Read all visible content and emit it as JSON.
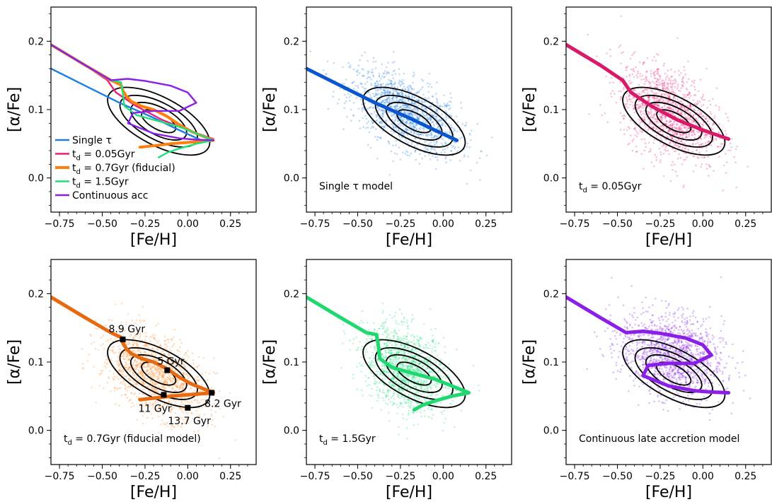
{
  "chart_data": [
    {
      "type": "line",
      "xlabel": "[Fe/H]",
      "ylabel": "[α/Fe]",
      "xlim": [
        -0.8,
        0.4
      ],
      "ylim": [
        -0.05,
        0.25
      ],
      "xticks": [
        "−0.75",
        "−0.50",
        "−0.25",
        "0.00",
        "0.25"
      ],
      "yticks": [
        "0.0",
        "0.1",
        "0.2"
      ],
      "grid": false,
      "legend_placement": "lower-left",
      "legend": [
        {
          "label": "Single τ",
          "color": "#1f7fe0"
        },
        {
          "label_main": "t",
          "label_sub": "d",
          "label_rest": " = 0.05Gyr",
          "color": "#e8207a"
        },
        {
          "label_main": "t",
          "label_sub": "d",
          "label_rest": " = 0.7Gyr (fiducial)",
          "color": "#ff7f0e"
        },
        {
          "label_main": "t",
          "label_sub": "d",
          "label_rest": " = 1.5Gyr",
          "color": "#22e07a"
        },
        {
          "label": "Continuous acc",
          "color": "#8a1fe8"
        }
      ],
      "series": [
        {
          "key": "single_tau",
          "color": "#1f7fe0",
          "x": [
            -0.8,
            -0.6,
            -0.4,
            -0.2,
            -0.05,
            0.08
          ],
          "y": [
            0.16,
            0.135,
            0.11,
            0.088,
            0.07,
            0.055
          ]
        },
        {
          "key": "td_0.05",
          "color": "#e8207a",
          "x": [
            -0.8,
            -0.6,
            -0.47,
            -0.42,
            -0.3,
            -0.15,
            0.0,
            0.15
          ],
          "y": [
            0.195,
            0.165,
            0.143,
            0.125,
            0.105,
            0.085,
            0.07,
            0.057
          ]
        },
        {
          "key": "td_0.7",
          "color": "#ff7f0e",
          "x": [
            -0.8,
            -0.6,
            -0.45,
            -0.39,
            -0.38,
            -0.36,
            -0.33,
            -0.27,
            -0.2,
            -0.12,
            -0.05,
            0.02,
            0.1,
            0.15,
            0.1,
            0.0,
            -0.1,
            -0.2,
            -0.28
          ],
          "y": [
            0.195,
            0.165,
            0.143,
            0.136,
            0.128,
            0.12,
            0.112,
            0.105,
            0.1,
            0.09,
            0.078,
            0.068,
            0.06,
            0.055,
            0.054,
            0.052,
            0.05,
            0.047,
            0.045
          ]
        },
        {
          "key": "td_1.5",
          "color": "#22e07a",
          "x": [
            -0.8,
            -0.6,
            -0.45,
            -0.39,
            -0.38,
            -0.37,
            -0.3,
            -0.2,
            -0.05,
            0.05,
            0.15,
            0.05,
            -0.05,
            -0.12,
            -0.17
          ],
          "y": [
            0.195,
            0.165,
            0.143,
            0.14,
            0.125,
            0.105,
            0.092,
            0.085,
            0.075,
            0.065,
            0.055,
            0.05,
            0.043,
            0.037,
            0.03
          ]
        },
        {
          "key": "continuous",
          "color": "#8a1fe8",
          "x": [
            -0.8,
            -0.6,
            -0.45,
            -0.4,
            -0.35,
            -0.25,
            -0.1,
            0.0,
            0.05,
            -0.05,
            -0.2,
            -0.32,
            -0.35,
            -0.2,
            -0.05,
            0.05,
            0.15
          ],
          "y": [
            0.195,
            0.165,
            0.143,
            0.144,
            0.145,
            0.142,
            0.135,
            0.125,
            0.11,
            0.098,
            0.098,
            0.095,
            0.08,
            0.065,
            0.058,
            0.056,
            0.055
          ]
        }
      ],
      "contours": true
    },
    {
      "type": "scatter",
      "xlabel": "[Fe/H]",
      "ylabel": "[α/Fe]",
      "xlim": [
        -0.8,
        0.4
      ],
      "ylim": [
        -0.05,
        0.25
      ],
      "xticks": [
        "−0.75",
        "−0.50",
        "−0.25",
        "0.00",
        "0.25"
      ],
      "yticks": [
        "0.0",
        "0.1",
        "0.2"
      ],
      "grid": false,
      "annotation": {
        "text": "Single τ model"
      },
      "scatter_color": "#1f7fe0",
      "track": {
        "color": "#0a56d0",
        "x": [
          -0.8,
          -0.6,
          -0.4,
          -0.2,
          -0.05,
          0.08
        ],
        "y": [
          0.16,
          0.135,
          0.11,
          0.088,
          0.07,
          0.055
        ]
      },
      "cloud": {
        "center_x": -0.22,
        "center_y": 0.095,
        "spread_x": 0.16,
        "spread_y": 0.025,
        "tilt": -0.11
      },
      "contours": true
    },
    {
      "type": "scatter",
      "xlabel": "[Fe/H]",
      "ylabel": "[α/Fe]",
      "xlim": [
        -0.8,
        0.4
      ],
      "ylim": [
        -0.05,
        0.25
      ],
      "xticks": [
        "−0.75",
        "−0.50",
        "−0.25",
        "0.00",
        "0.25"
      ],
      "yticks": [
        "0.0",
        "0.1",
        "0.2"
      ],
      "grid": false,
      "annotation": {
        "main": "t",
        "sub": "d",
        "rest": " = 0.05Gyr"
      },
      "scatter_color": "#e8207a",
      "track": {
        "color": "#d81b68",
        "x": [
          -0.8,
          -0.6,
          -0.47,
          -0.42,
          -0.3,
          -0.15,
          0.0,
          0.15
        ],
        "y": [
          0.195,
          0.165,
          0.143,
          0.125,
          0.105,
          0.085,
          0.07,
          0.057
        ]
      },
      "cloud": {
        "center_x": -0.2,
        "center_y": 0.095,
        "spread_x": 0.14,
        "spread_y": 0.032,
        "tilt": -0.1
      },
      "contours": true
    },
    {
      "type": "scatter",
      "xlabel": "[Fe/H]",
      "ylabel": "[α/Fe]",
      "xlim": [
        -0.8,
        0.4
      ],
      "ylim": [
        -0.05,
        0.25
      ],
      "xticks": [
        "−0.75",
        "−0.50",
        "−0.25",
        "0.00",
        "0.25"
      ],
      "yticks": [
        "0.0",
        "0.1",
        "0.2"
      ],
      "grid": false,
      "annotation": {
        "main": "t",
        "sub": "d",
        "rest": " = 0.7Gyr (fiducial model)"
      },
      "scatter_color": "#ff8c2a",
      "track": {
        "color": "#e86a10",
        "x": [
          -0.8,
          -0.6,
          -0.45,
          -0.39,
          -0.38,
          -0.36,
          -0.33,
          -0.27,
          -0.2,
          -0.12,
          -0.05,
          0.02,
          0.1,
          0.15,
          0.1,
          0.0,
          -0.1,
          -0.2,
          -0.28
        ],
        "y": [
          0.195,
          0.165,
          0.143,
          0.136,
          0.128,
          0.12,
          0.112,
          0.105,
          0.1,
          0.09,
          0.078,
          0.068,
          0.06,
          0.055,
          0.054,
          0.052,
          0.05,
          0.047,
          0.045
        ]
      },
      "cloud": {
        "center_x": -0.2,
        "center_y": 0.082,
        "spread_x": 0.15,
        "spread_y": 0.028,
        "tilt": -0.1
      },
      "age_markers": [
        {
          "label": "8.9 Gyr",
          "x": -0.38,
          "y": 0.133
        },
        {
          "label": "5 Gyr",
          "x": -0.12,
          "y": 0.088
        },
        {
          "label": "8.2 Gyr",
          "x": 0.14,
          "y": 0.055
        },
        {
          "label": "11 Gyr",
          "x": -0.14,
          "y": 0.052
        },
        {
          "label": "13.7 Gyr",
          "x": 0.0,
          "y": 0.033
        }
      ],
      "contours": true
    },
    {
      "type": "scatter",
      "xlabel": "[Fe/H]",
      "ylabel": "[α/Fe]",
      "xlim": [
        -0.8,
        0.4
      ],
      "ylim": [
        -0.05,
        0.25
      ],
      "xticks": [
        "−0.75",
        "−0.50",
        "−0.25",
        "0.00",
        "0.25"
      ],
      "yticks": [
        "0.0",
        "0.1",
        "0.2"
      ],
      "grid": false,
      "annotation": {
        "main": "t",
        "sub": "d",
        "rest": " = 1.5Gyr"
      },
      "scatter_color": "#22e07a",
      "track": {
        "color": "#1fd870",
        "x": [
          -0.8,
          -0.6,
          -0.45,
          -0.39,
          -0.38,
          -0.37,
          -0.3,
          -0.2,
          -0.05,
          0.05,
          0.15,
          0.05,
          -0.05,
          -0.12,
          -0.17
        ],
        "y": [
          0.195,
          0.165,
          0.143,
          0.14,
          0.125,
          0.105,
          0.092,
          0.085,
          0.075,
          0.065,
          0.055,
          0.05,
          0.043,
          0.037,
          0.03
        ]
      },
      "cloud": {
        "center_x": -0.22,
        "center_y": 0.09,
        "spread_x": 0.12,
        "spread_y": 0.03,
        "tilt": -0.08
      },
      "contours": true
    },
    {
      "type": "scatter",
      "xlabel": "[Fe/H]",
      "ylabel": "[α/Fe]",
      "xlim": [
        -0.8,
        0.4
      ],
      "ylim": [
        -0.05,
        0.25
      ],
      "xticks": [
        "−0.75",
        "−0.50",
        "−0.25",
        "0.00",
        "0.25"
      ],
      "yticks": [
        "0.0",
        "0.1",
        "0.2"
      ],
      "grid": false,
      "annotation": {
        "text": "Continuous late accretion model"
      },
      "scatter_color": "#8a1fe8",
      "track": {
        "color": "#8a1fe8",
        "x": [
          -0.8,
          -0.6,
          -0.45,
          -0.4,
          -0.35,
          -0.25,
          -0.1,
          0.0,
          0.05,
          -0.05,
          -0.2,
          -0.32,
          -0.35,
          -0.2,
          -0.05,
          0.05,
          0.15
        ],
        "y": [
          0.195,
          0.165,
          0.143,
          0.144,
          0.145,
          0.142,
          0.135,
          0.125,
          0.11,
          0.098,
          0.098,
          0.095,
          0.08,
          0.065,
          0.058,
          0.056,
          0.055
        ]
      },
      "cloud": {
        "center_x": -0.18,
        "center_y": 0.11,
        "spread_x": 0.15,
        "spread_y": 0.03,
        "tilt": -0.05
      },
      "contours": true
    }
  ],
  "contour_levels": [
    {
      "cx": -0.17,
      "cy": 0.083,
      "rx": 0.33,
      "ry": 0.035
    },
    {
      "cx": -0.17,
      "cy": 0.083,
      "rx": 0.25,
      "ry": 0.027
    },
    {
      "cx": -0.17,
      "cy": 0.083,
      "rx": 0.18,
      "ry": 0.02
    },
    {
      "cx": -0.17,
      "cy": 0.083,
      "rx": 0.11,
      "ry": 0.012
    }
  ]
}
